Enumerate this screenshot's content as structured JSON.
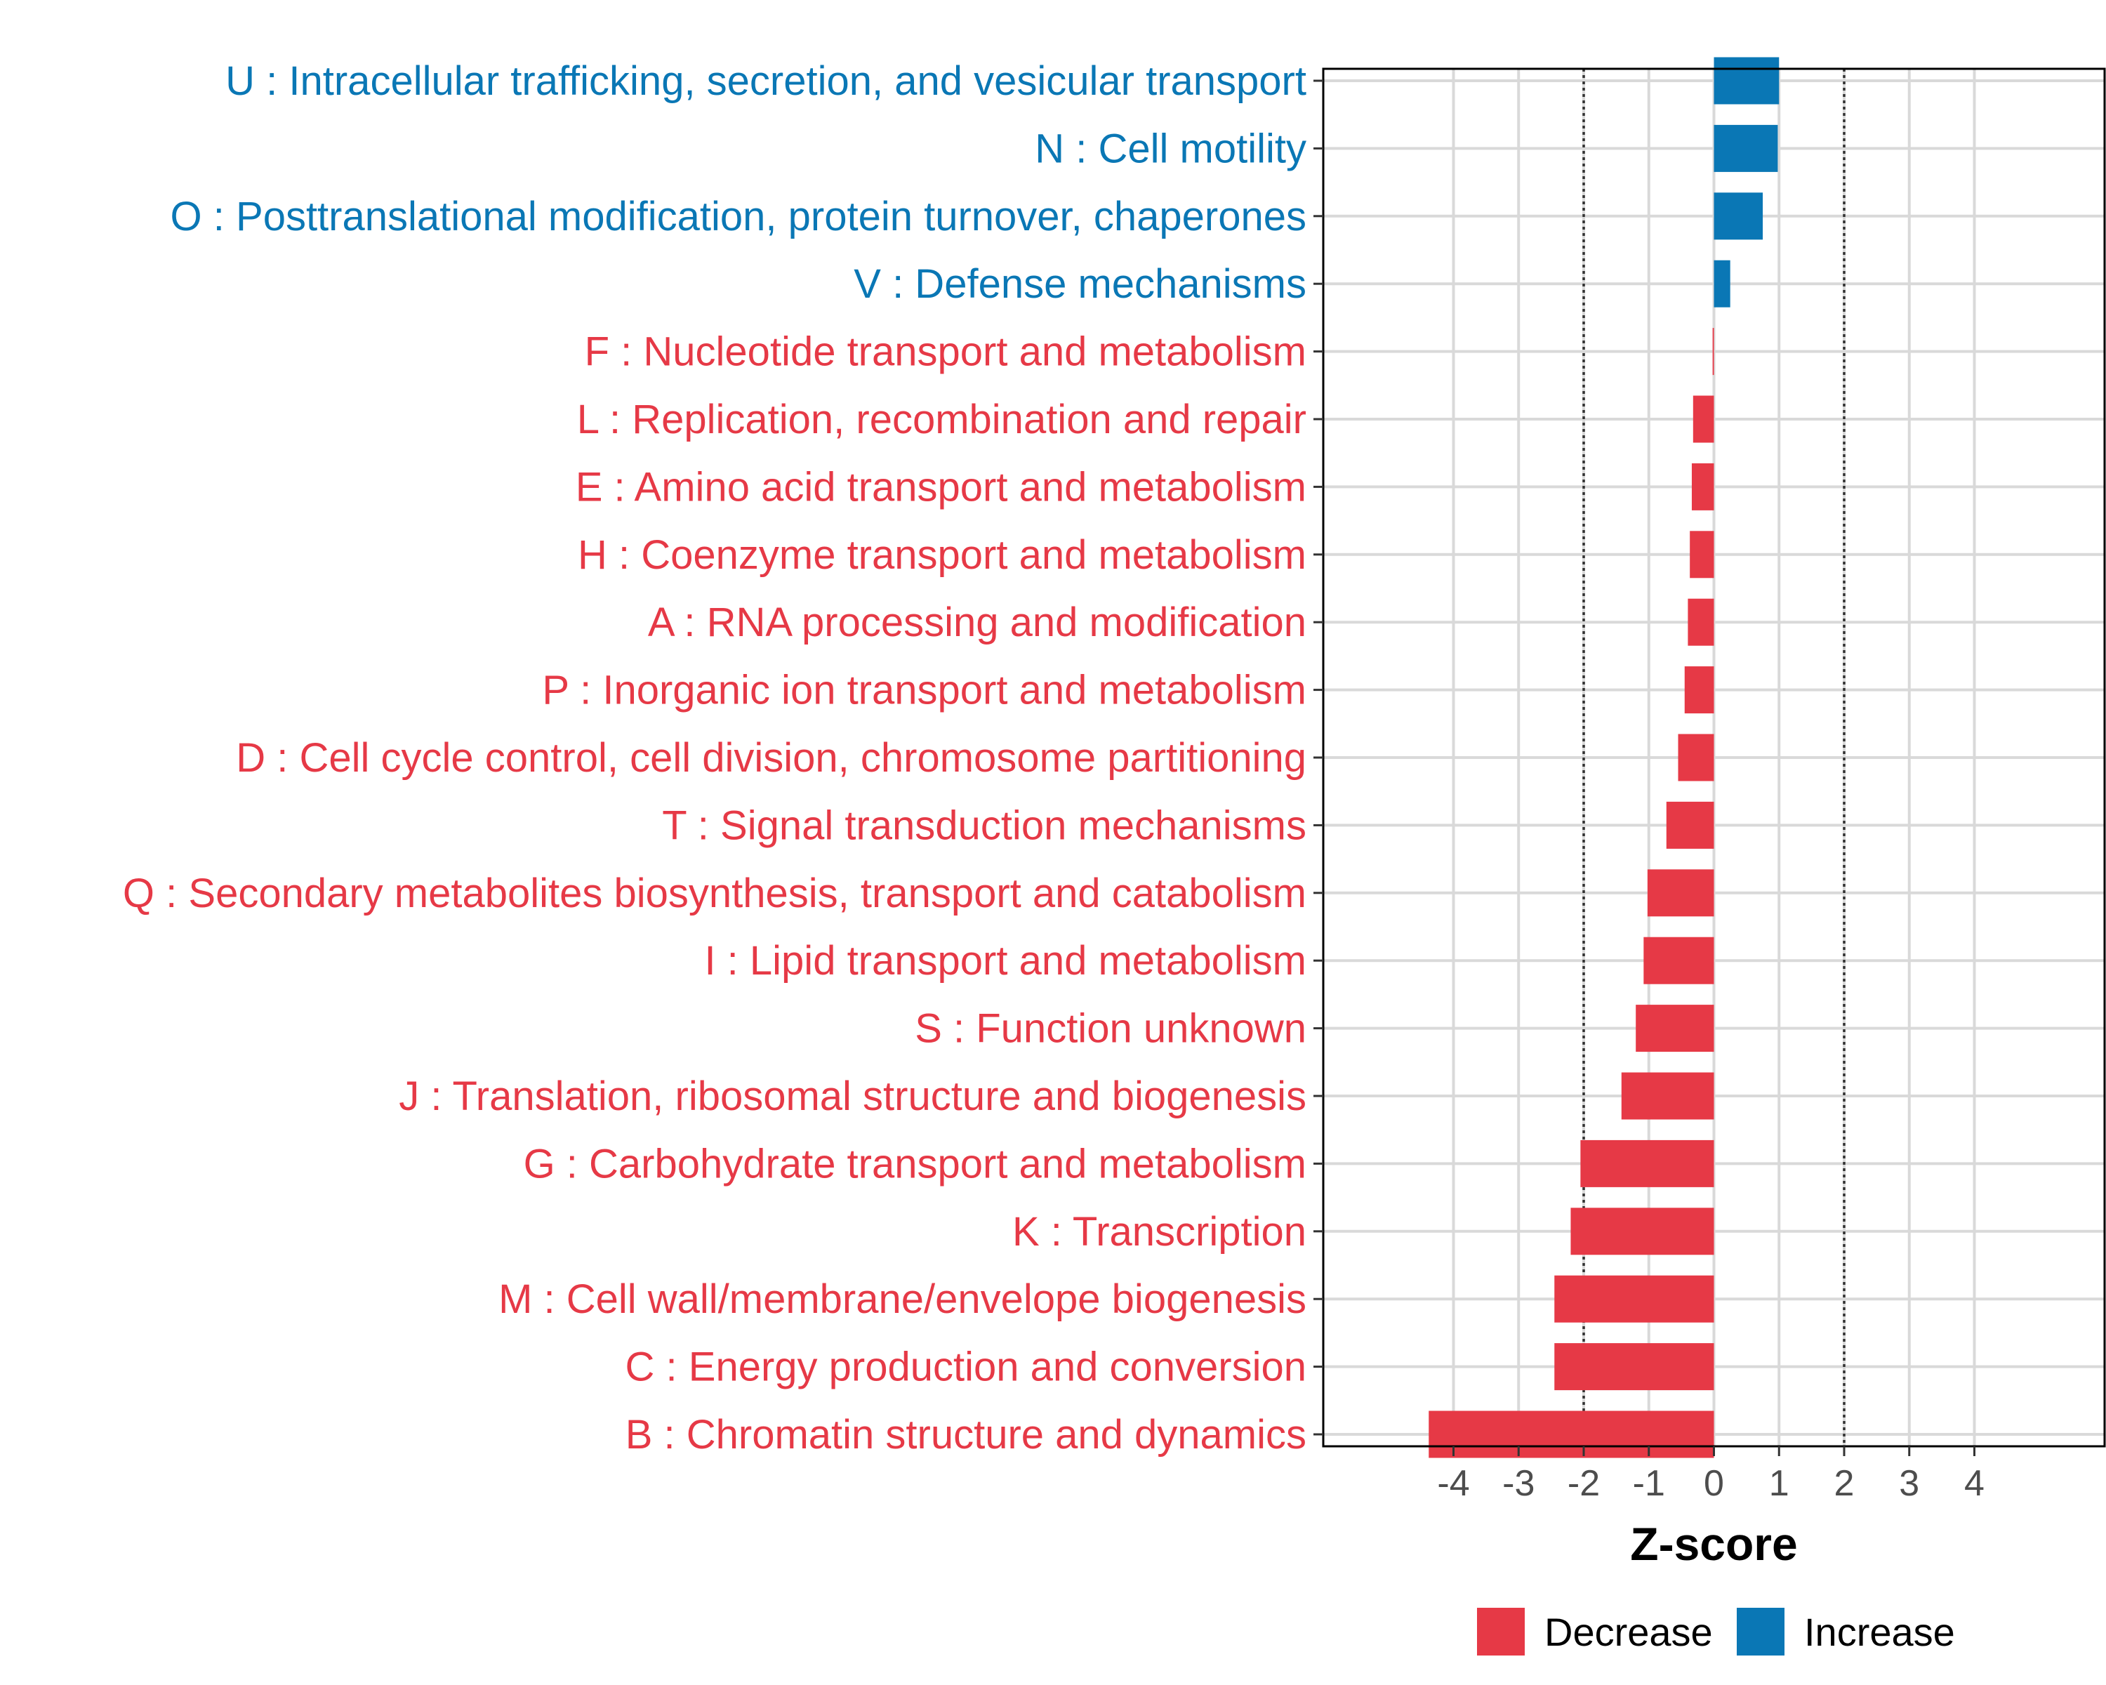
{
  "chart_data": {
    "type": "bar",
    "orientation": "horizontal",
    "xlabel": "Z-score",
    "ylabel": "",
    "xlim": [
      -6,
      6
    ],
    "xticks": [
      "-4",
      "-3",
      "-2",
      "-1",
      "0",
      "1",
      "2",
      "3",
      "4"
    ],
    "reference_lines": [
      -2,
      2
    ],
    "grid": true,
    "legend_position": "bottom",
    "colors": {
      "Decrease": "#E63946",
      "Increase": "#0A77B5"
    },
    "legend": [
      "Decrease",
      "Increase"
    ],
    "categories": [
      "U : Intracellular trafficking, secretion, and vesicular transport",
      "N : Cell motility",
      "O : Posttranslational modification, protein turnover, chaperones",
      "V : Defense mechanisms",
      "F : Nucleotide transport and metabolism",
      "L : Replication, recombination and repair",
      "E : Amino acid transport and metabolism",
      "H : Coenzyme transport and metabolism",
      "A : RNA processing and modification",
      "P : Inorganic ion transport and metabolism",
      "D : Cell cycle control, cell division, chromosome partitioning",
      "T : Signal transduction mechanisms",
      "Q : Secondary metabolites biosynthesis, transport and catabolism",
      "I : Lipid transport and metabolism",
      "S : Function unknown",
      "J : Translation, ribosomal structure and biogenesis",
      "G : Carbohydrate transport and metabolism",
      "K : Transcription",
      "M : Cell wall/membrane/envelope biogenesis",
      "C : Energy production and conversion",
      "B : Chromatin structure and dynamics"
    ],
    "values": [
      1.0,
      0.98,
      0.75,
      0.25,
      -0.02,
      -0.32,
      -0.34,
      -0.37,
      -0.4,
      -0.45,
      -0.55,
      -0.73,
      -1.02,
      -1.08,
      -1.2,
      -1.42,
      -2.05,
      -2.2,
      -2.45,
      -2.45,
      -4.38
    ],
    "groups": [
      "Increase",
      "Increase",
      "Increase",
      "Increase",
      "Decrease",
      "Decrease",
      "Decrease",
      "Decrease",
      "Decrease",
      "Decrease",
      "Decrease",
      "Decrease",
      "Decrease",
      "Decrease",
      "Decrease",
      "Decrease",
      "Decrease",
      "Decrease",
      "Decrease",
      "Decrease",
      "Decrease"
    ]
  }
}
